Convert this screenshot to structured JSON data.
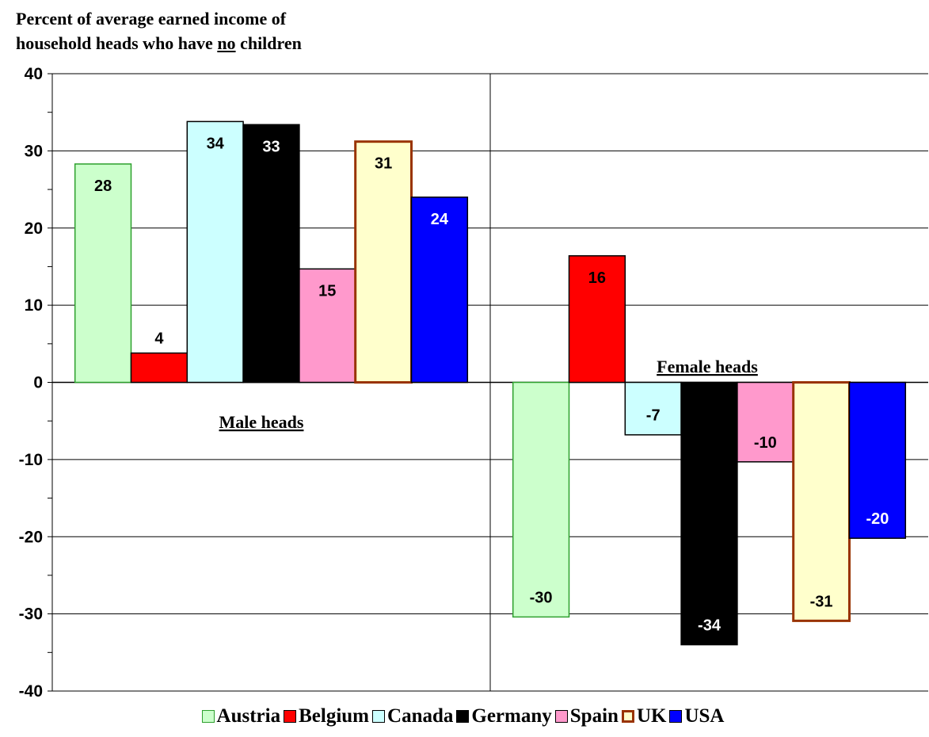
{
  "chart_data": {
    "type": "bar",
    "title_line1": "Percent of average earned income of",
    "title_line2_pre": "household heads who have ",
    "title_line2_emph": "no",
    "title_line2_post": " children",
    "categories": [
      "Male heads",
      "Female heads"
    ],
    "ylim": [
      -40,
      40
    ],
    "yticks": [
      40,
      30,
      20,
      10,
      0,
      -10,
      -20,
      -30,
      -40
    ],
    "grid": true,
    "legend_position": "bottom",
    "series": [
      {
        "name": "Austria",
        "values": [
          28,
          -30
        ],
        "fill": "#ccffcc",
        "stroke": "#2ea02e",
        "label_color": "#000000"
      },
      {
        "name": "Belgium",
        "values": [
          4,
          16
        ],
        "fill": "#ff0000",
        "stroke": "#000000",
        "label_color": "#000000"
      },
      {
        "name": "Canada",
        "values": [
          34,
          -7
        ],
        "fill": "#ccffff",
        "stroke": "#000000",
        "label_color": "#000000"
      },
      {
        "name": "Germany",
        "values": [
          33,
          -34
        ],
        "fill": "#000000",
        "stroke": "#000000",
        "label_color": "#ffffff"
      },
      {
        "name": "Spain",
        "values": [
          15,
          -10
        ],
        "fill": "#ff99cc",
        "stroke": "#000000",
        "label_color": "#000000"
      },
      {
        "name": "UK",
        "values": [
          31,
          -31
        ],
        "fill": "#ffffcc",
        "stroke": "#993300",
        "label_color": "#000000"
      },
      {
        "name": "USA",
        "values": [
          24,
          -20
        ],
        "fill": "#0000ff",
        "stroke": "#000000",
        "label_color": "#ffffff"
      }
    ],
    "exact_values": [
      [
        28.3,
        -30.4
      ],
      [
        3.8,
        16.4
      ],
      [
        33.8,
        -6.8
      ],
      [
        33.4,
        -34.0
      ],
      [
        14.7,
        -10.3
      ],
      [
        31.2,
        -30.9
      ],
      [
        24.0,
        -20.2
      ]
    ]
  }
}
